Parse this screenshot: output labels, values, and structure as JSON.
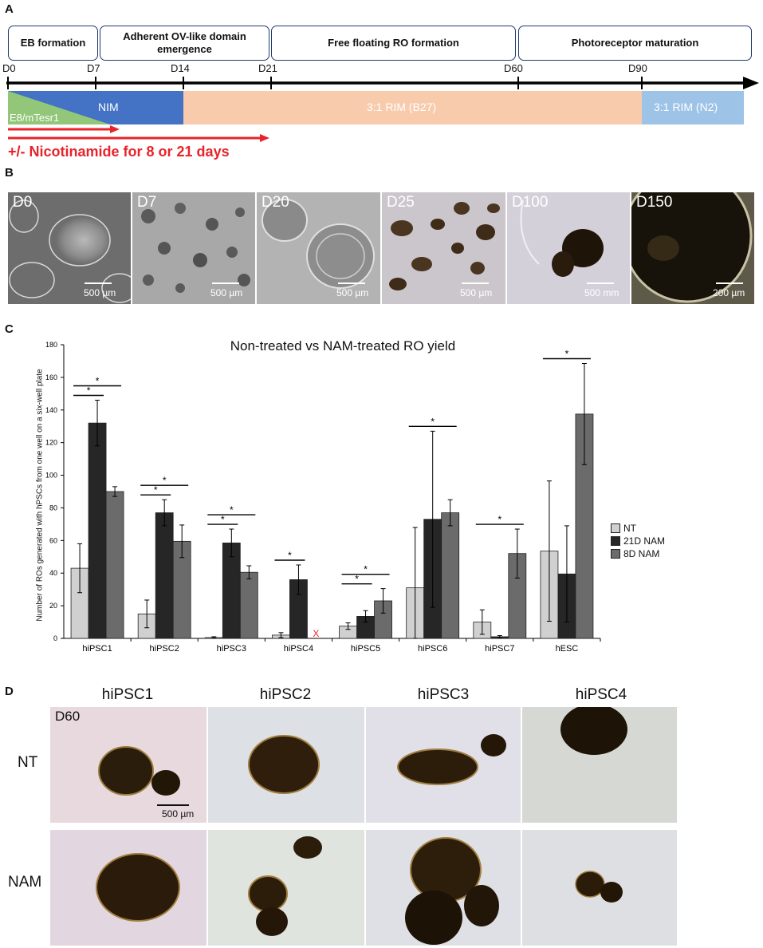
{
  "panelA": {
    "label": "A",
    "phases": [
      "EB formation",
      "Adherent OV-like domain emergence",
      "Free floating RO formation",
      "Photoreceptor maturation"
    ],
    "days": [
      "D0",
      "D7",
      "D14",
      "D21",
      "D60",
      "D90"
    ],
    "media": {
      "e8": "E8/mTesr1",
      "nim": "NIM",
      "rim_b27": "3:1 RIM (B27)",
      "rim_n2": "3:1 RIM (N2)"
    },
    "nicotinamide_text": "+/- Nicotinamide for 8 or 21 days",
    "colors": {
      "e8": "#92c77a",
      "nim": "#4472c4",
      "rim_b27": "#f8cbad",
      "rim_n2": "#9dc3e6",
      "red": "#e8232a",
      "box_border": "#1f3a6e"
    }
  },
  "panelB": {
    "label": "B",
    "images": [
      {
        "day": "D0",
        "scale": "500 µm"
      },
      {
        "day": "D7",
        "scale": "500 µm"
      },
      {
        "day": "D20",
        "scale": "500 µm"
      },
      {
        "day": "D25",
        "scale": "500 µm"
      },
      {
        "day": "D100",
        "scale": "500 mm"
      },
      {
        "day": "D150",
        "scale": "200 µm"
      }
    ]
  },
  "panelC": {
    "label": "C",
    "missing_marker": "X",
    "significance_marker": "*"
  },
  "chart_data": {
    "type": "bar",
    "title": "Non-treated vs NAM-treated RO yield",
    "xlabel": "",
    "ylabel": "Number of ROs generated with hPSCs from one well on a six-well plate",
    "ylim": [
      0,
      180
    ],
    "yticks": [
      0,
      20,
      40,
      60,
      80,
      100,
      120,
      140,
      160,
      180
    ],
    "categories": [
      "hiPSC1",
      "hiPSC2",
      "hiPSC3",
      "hiPSC4",
      "hiPSC5",
      "hiPSC6",
      "hiPSC7",
      "hESC"
    ],
    "series": [
      {
        "name": "NT",
        "color": "#d0d0d0",
        "values": [
          43,
          15,
          0.5,
          2,
          7.5,
          31,
          10,
          53.5
        ],
        "err": [
          15,
          8.5,
          0.5,
          1.5,
          2,
          37,
          7.5,
          43
        ]
      },
      {
        "name": "21D NAM",
        "color": "#262626",
        "values": [
          132,
          77,
          58.5,
          36,
          13.5,
          73,
          1,
          39.5
        ],
        "err": [
          14,
          8,
          8.5,
          9,
          3.5,
          54,
          0.7,
          29.5
        ]
      },
      {
        "name": "8D NAM",
        "color": "#6b6b6b",
        "values": [
          90,
          59.5,
          40.5,
          null,
          23,
          77,
          52,
          137.5
        ],
        "err": [
          3,
          10,
          4,
          0,
          7.5,
          8,
          15,
          31
        ]
      }
    ],
    "significance": [
      {
        "category": "hiPSC1",
        "pairs": [
          [
            "NT",
            "21D NAM"
          ],
          [
            "NT",
            "8D NAM"
          ]
        ]
      },
      {
        "category": "hiPSC2",
        "pairs": [
          [
            "NT",
            "21D NAM"
          ],
          [
            "NT",
            "8D NAM"
          ]
        ]
      },
      {
        "category": "hiPSC3",
        "pairs": [
          [
            "NT",
            "21D NAM"
          ],
          [
            "NT",
            "8D NAM"
          ]
        ]
      },
      {
        "category": "hiPSC4",
        "pairs": [
          [
            "NT",
            "21D NAM"
          ]
        ]
      },
      {
        "category": "hiPSC5",
        "pairs": [
          [
            "NT",
            "21D NAM"
          ],
          [
            "NT",
            "8D NAM"
          ]
        ]
      },
      {
        "category": "hiPSC6",
        "pairs": [
          [
            "NT",
            "8D NAM"
          ]
        ]
      },
      {
        "category": "hiPSC7",
        "pairs": [
          [
            "NT",
            "8D NAM"
          ]
        ]
      },
      {
        "category": "hESC",
        "pairs": [
          [
            "NT",
            "8D NAM"
          ]
        ]
      }
    ],
    "legend": "right",
    "grid": false
  },
  "panelD": {
    "label": "D",
    "columns": [
      "hiPSC1",
      "hiPSC2",
      "hiPSC3",
      "hiPSC4"
    ],
    "rows": [
      "NT",
      "NAM"
    ],
    "day": "D60",
    "scale": "500 µm"
  }
}
